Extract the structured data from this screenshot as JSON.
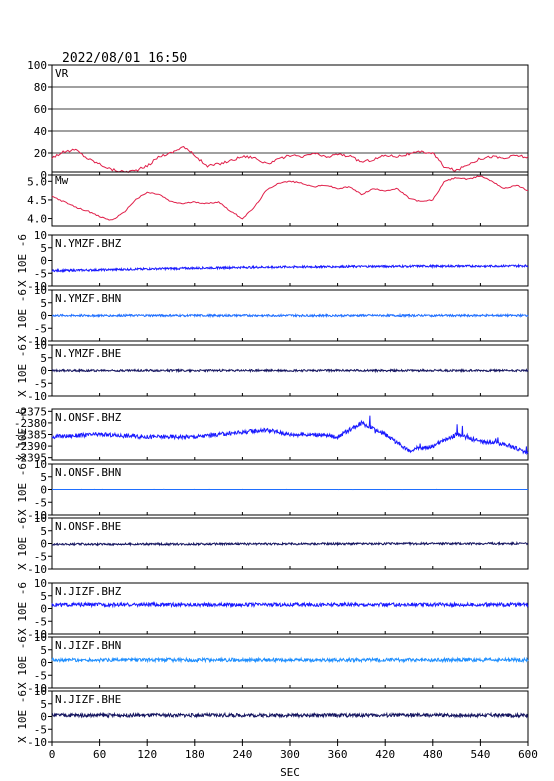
{
  "header": {
    "timestamp": "2022/08/01  16:50"
  },
  "x_axis": {
    "label": "SEC",
    "ticks": [
      "0",
      "60",
      "120",
      "180",
      "240",
      "300",
      "360",
      "420",
      "480",
      "540",
      "600"
    ]
  },
  "chart_data": [
    {
      "type": "line",
      "title": "VR",
      "ylim": [
        0,
        100
      ],
      "yticks": [
        "0",
        "20",
        "40",
        "60",
        "80",
        "100"
      ],
      "grid": true,
      "color": "#e0204a",
      "series": [
        {
          "x": [
            0,
            15,
            30,
            45,
            60,
            75,
            90,
            105,
            120,
            135,
            150,
            165,
            180,
            195,
            210,
            225,
            240,
            255,
            270,
            285,
            300,
            315,
            330,
            345,
            360,
            375,
            390,
            405,
            420,
            435,
            450,
            465,
            480,
            495,
            510,
            525,
            540,
            555,
            570,
            585,
            600
          ],
          "values": [
            16,
            21,
            23,
            15,
            10,
            5,
            3,
            4,
            8,
            17,
            20,
            26,
            18,
            8,
            10,
            13,
            17,
            16,
            10,
            14,
            18,
            16,
            20,
            16,
            19,
            17,
            12,
            14,
            18,
            17,
            19,
            21,
            20,
            7,
            4,
            10,
            15,
            17,
            15,
            18,
            16
          ]
        }
      ]
    },
    {
      "type": "line",
      "title": "Mw",
      "ylim": [
        3.8,
        5.25
      ],
      "yticks": [
        "4.0",
        "4.5",
        "5.0"
      ],
      "grid": false,
      "color": "#e0204a",
      "series": [
        {
          "x": [
            0,
            15,
            30,
            45,
            60,
            75,
            90,
            105,
            120,
            135,
            150,
            165,
            180,
            195,
            210,
            225,
            240,
            255,
            270,
            285,
            300,
            315,
            330,
            345,
            360,
            375,
            390,
            405,
            420,
            435,
            450,
            465,
            480,
            495,
            510,
            525,
            540,
            555,
            570,
            585,
            600
          ],
          "values": [
            4.6,
            4.45,
            4.3,
            4.2,
            4.05,
            3.95,
            4.15,
            4.5,
            4.7,
            4.65,
            4.45,
            4.4,
            4.45,
            4.4,
            4.45,
            4.2,
            4.0,
            4.3,
            4.75,
            4.95,
            5.0,
            4.95,
            4.85,
            4.9,
            4.8,
            4.85,
            4.65,
            4.8,
            4.75,
            4.8,
            4.55,
            4.45,
            4.5,
            5.0,
            5.1,
            5.05,
            5.15,
            5.0,
            4.8,
            4.9,
            4.75
          ]
        }
      ]
    },
    {
      "type": "line",
      "title": "N.YMZF.BHZ",
      "ylabel": "X 10E -6",
      "ylim": [
        -10,
        10
      ],
      "yticks": [
        "-10",
        "-5",
        "0",
        "5",
        "10"
      ],
      "grid": false,
      "color": "#1a1aff",
      "series": [
        {
          "x": [
            0,
            60,
            120,
            180,
            240,
            300,
            360,
            420,
            480,
            540,
            600
          ],
          "values": [
            -4,
            -3.7,
            -3.3,
            -3,
            -2.7,
            -2.5,
            -2.4,
            -2.3,
            -2.2,
            -2.2,
            -2.1
          ]
        }
      ]
    },
    {
      "type": "line",
      "title": "N.YMZF.BHN",
      "ylabel": "X 10E -6",
      "ylim": [
        -10,
        10
      ],
      "yticks": [
        "-10",
        "-5",
        "0",
        "5",
        "10"
      ],
      "grid": false,
      "color": "#1f6fff",
      "series": [
        {
          "x": [
            0,
            600
          ],
          "values": [
            0,
            0
          ]
        }
      ]
    },
    {
      "type": "line",
      "title": "N.YMZF.BHE",
      "ylabel": "X 10E -6",
      "ylim": [
        -10,
        10
      ],
      "yticks": [
        "-10",
        "-5",
        "0",
        "5",
        "10"
      ],
      "grid": false,
      "color": "#151560",
      "series": [
        {
          "x": [
            0,
            600
          ],
          "values": [
            0,
            0
          ]
        }
      ]
    },
    {
      "type": "line",
      "title": "N.ONSF.BHZ",
      "ylabel": "X 10E -6",
      "ylim": [
        -2396,
        -2374
      ],
      "yticks": [
        "-2375",
        "-2380",
        "-2385",
        "-2390",
        "-2395"
      ],
      "grid": false,
      "color": "#1a1aff",
      "series": [
        {
          "x": [
            0,
            60,
            120,
            180,
            240,
            270,
            300,
            330,
            360,
            390,
            420,
            450,
            480,
            510,
            540,
            570,
            600
          ],
          "values": [
            -2386,
            -2385,
            -2386,
            -2386,
            -2384,
            -2383,
            -2385,
            -2385,
            -2386,
            -2380,
            -2385,
            -2392,
            -2390,
            -2385,
            -2388,
            -2389,
            -2393
          ]
        }
      ]
    },
    {
      "type": "line",
      "title": "N.ONSF.BHN",
      "ylabel": "X 10E -6",
      "ylim": [
        -10,
        10
      ],
      "yticks": [
        "-10",
        "-5",
        "0",
        "5",
        "10"
      ],
      "grid": false,
      "color": "#1f6fff",
      "series": [
        {
          "x": [
            0,
            600
          ],
          "values": [
            0,
            0
          ]
        }
      ]
    },
    {
      "type": "line",
      "title": "N.ONSF.BHE",
      "ylabel": "X 10E -6",
      "ylim": [
        -10,
        10
      ],
      "yticks": [
        "-10",
        "-5",
        "0",
        "5",
        "10"
      ],
      "grid": false,
      "color": "#151560",
      "series": [
        {
          "x": [
            0,
            600
          ],
          "values": [
            -0.3,
            0
          ]
        }
      ]
    },
    {
      "type": "line",
      "title": "N.JIZF.BHZ",
      "ylabel": "X 10E -6",
      "ylim": [
        -10,
        10
      ],
      "yticks": [
        "-10",
        "-5",
        "0",
        "5",
        "10"
      ],
      "grid": false,
      "color": "#1a1aff",
      "series": [
        {
          "x": [
            0,
            600
          ],
          "values": [
            1.5,
            1.5
          ]
        }
      ]
    },
    {
      "type": "line",
      "title": "N.JIZF.BHN",
      "ylabel": "X 10E -6",
      "ylim": [
        -10,
        10
      ],
      "yticks": [
        "-10",
        "-5",
        "0",
        "5",
        "10"
      ],
      "grid": false,
      "color": "#1f8fff",
      "series": [
        {
          "x": [
            0,
            600
          ],
          "values": [
            1,
            1
          ]
        }
      ]
    },
    {
      "type": "line",
      "title": "N.JIZF.BHE",
      "ylabel": "X 10E -6",
      "ylim": [
        -10,
        10
      ],
      "yticks": [
        "-10",
        "-5",
        "0",
        "5",
        "10"
      ],
      "grid": false,
      "color": "#151560",
      "series": [
        {
          "x": [
            0,
            600
          ],
          "values": [
            0.5,
            0.5
          ]
        }
      ]
    }
  ]
}
